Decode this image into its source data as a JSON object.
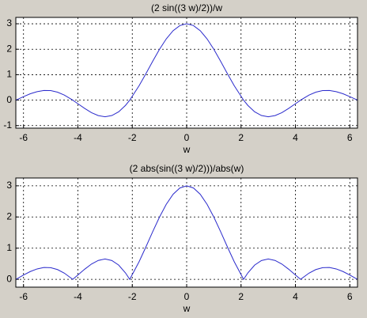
{
  "chart_data": [
    {
      "type": "line",
      "title": "(2 sin((3 w)/2))/w",
      "xlabel": "w",
      "grid": true,
      "xlim": [
        -6.283,
        6.283
      ],
      "xticks": [
        -6,
        -4,
        -2,
        0,
        2,
        4,
        6
      ],
      "ylim": [
        -1.1,
        3.25
      ],
      "yticks": [
        -1,
        0,
        1,
        2,
        3
      ],
      "x": [
        -6.283,
        -6,
        -5.75,
        -5.5,
        -5.25,
        -5,
        -4.75,
        -4.5,
        -4.189,
        -4,
        -3.75,
        -3.5,
        -3.25,
        -3,
        -2.75,
        -2.5,
        -2.25,
        -2.094,
        -1.75,
        -1.5,
        -1.25,
        -1,
        -0.75,
        -0.5,
        -0.25,
        0,
        0.25,
        0.5,
        0.75,
        1,
        1.25,
        1.5,
        1.75,
        2.094,
        2.25,
        2.5,
        2.75,
        3,
        3.25,
        3.5,
        3.75,
        4,
        4.189,
        4.5,
        4.75,
        5,
        5.25,
        5.5,
        5.75,
        6,
        6.283
      ],
      "series": [
        {
          "color": "#2b2bcc",
          "values": [
            0,
            0.137,
            0.251,
            0.334,
            0.381,
            0.375,
            0.314,
            0.2,
            0,
            -0.14,
            -0.326,
            -0.491,
            -0.607,
            -0.652,
            -0.604,
            -0.457,
            -0.206,
            0,
            0.565,
            1.037,
            1.527,
            1.995,
            2.406,
            2.727,
            2.93,
            3,
            2.93,
            2.727,
            2.406,
            1.995,
            1.527,
            1.037,
            0.565,
            0,
            -0.206,
            -0.457,
            -0.604,
            -0.652,
            -0.607,
            -0.491,
            -0.326,
            -0.14,
            0,
            0.2,
            0.314,
            0.375,
            0.381,
            0.334,
            0.251,
            0.137,
            0
          ]
        }
      ]
    },
    {
      "type": "line",
      "title": "(2 abs(sin((3 w)/2)))/abs(w)",
      "xlabel": "w",
      "grid": true,
      "xlim": [
        -6.283,
        6.283
      ],
      "xticks": [
        -6,
        -4,
        -2,
        0,
        2,
        4,
        6
      ],
      "ylim": [
        -0.25,
        3.25
      ],
      "yticks": [
        0,
        1,
        2,
        3
      ],
      "x": [
        -6.283,
        -6,
        -5.75,
        -5.5,
        -5.25,
        -5,
        -4.75,
        -4.5,
        -4.189,
        -4,
        -3.75,
        -3.5,
        -3.25,
        -3,
        -2.75,
        -2.5,
        -2.25,
        -2.094,
        -1.75,
        -1.5,
        -1.25,
        -1,
        -0.75,
        -0.5,
        -0.25,
        0,
        0.25,
        0.5,
        0.75,
        1,
        1.25,
        1.5,
        1.75,
        2.094,
        2.25,
        2.5,
        2.75,
        3,
        3.25,
        3.5,
        3.75,
        4,
        4.189,
        4.5,
        4.75,
        5,
        5.25,
        5.5,
        5.75,
        6,
        6.283
      ],
      "series": [
        {
          "color": "#2b2bcc",
          "values": [
            0,
            0.137,
            0.251,
            0.334,
            0.381,
            0.375,
            0.314,
            0.2,
            0,
            0.14,
            0.326,
            0.491,
            0.607,
            0.652,
            0.604,
            0.457,
            0.206,
            0,
            0.565,
            1.037,
            1.527,
            1.995,
            2.406,
            2.727,
            2.93,
            3,
            2.93,
            2.727,
            2.406,
            1.995,
            1.527,
            1.037,
            0.565,
            0,
            0.206,
            0.457,
            0.604,
            0.652,
            0.607,
            0.491,
            0.326,
            0.14,
            0,
            0.2,
            0.314,
            0.375,
            0.381,
            0.334,
            0.251,
            0.137,
            0
          ]
        }
      ]
    }
  ]
}
